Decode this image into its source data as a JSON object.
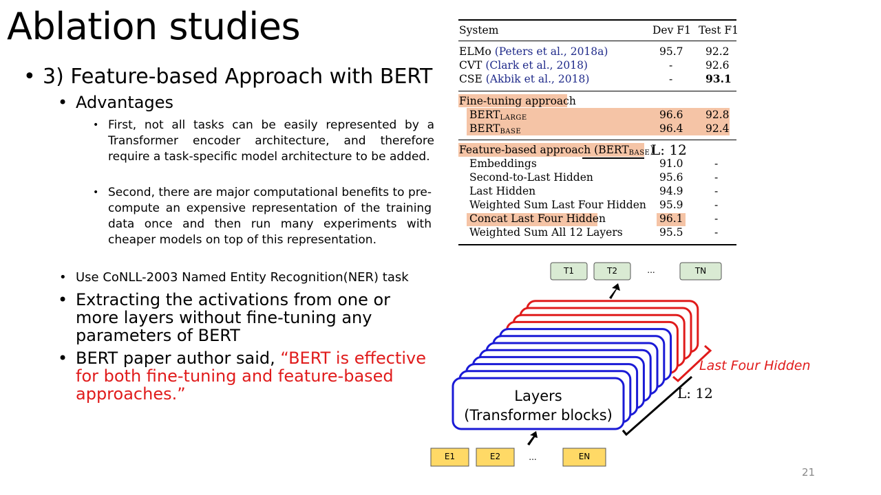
{
  "slide": {
    "title": "Ablation studies",
    "page_number": "21",
    "bullets": {
      "main": "3) Feature-based Approach with BERT",
      "advantages": "Advantages",
      "adv1": "First, not all tasks can be easily represented by a Transformer encoder architecture, and therefore require a task-specific model architecture to be added.",
      "adv2": "Second, there are major computational benefits to pre-compute an expensive representation of the training data once and then run many experiments with cheaper models on top of this representation.",
      "conll": "Use CoNLL-2003 Named Entity Recognition(NER) task",
      "extract": "Extracting the activations from one or more layers without fine-tuning any parameters of BERT",
      "author_prefix": "BERT paper author said, ",
      "author_quote": "“BERT is effective for both fine-tuning and feature-based approaches.”"
    }
  },
  "table": {
    "headers": [
      "System",
      "Dev F1",
      "Test F1"
    ],
    "rows_top": [
      {
        "name": "ELMo",
        "cite": "(Peters et al., 2018a)",
        "dev": "95.7",
        "test": "92.2"
      },
      {
        "name": "CVT",
        "cite": "(Clark et al., 2018)",
        "dev": "-",
        "test": "92.6"
      },
      {
        "name": "CSE",
        "cite": "(Akbik et al., 2018)",
        "dev": "-",
        "test": "93.1"
      }
    ],
    "finetune_label": "Fine-tuning approach",
    "bert_large": {
      "base": "BERT",
      "sub": "LARGE",
      "dev": "96.6",
      "test": "92.8"
    },
    "bert_base": {
      "base": "BERT",
      "sub": "BASE",
      "dev": "96.4",
      "test": "92.4"
    },
    "feature_label_prefix": "Feature-based approach (BERT",
    "feature_label_sub": "BASE",
    "feature_label_suffix": ")",
    "rows_feature": [
      {
        "name": "Embeddings",
        "dev": "91.0",
        "test": "-"
      },
      {
        "name": "Second-to-Last Hidden",
        "dev": "95.6",
        "test": "-"
      },
      {
        "name": "Last Hidden",
        "dev": "94.9",
        "test": "-"
      },
      {
        "name": "Weighted Sum Last Four Hidden",
        "dev": "95.9",
        "test": "-"
      },
      {
        "name": "Concat Last Four Hidden",
        "dev": "96.1",
        "test": "-"
      },
      {
        "name": "Weighted Sum All 12 Layers",
        "dev": "95.5",
        "test": "-"
      }
    ]
  },
  "diagram": {
    "outputs": [
      "T1",
      "T2",
      "...",
      "TN"
    ],
    "inputs": [
      "E1",
      "E2",
      "...",
      "EN"
    ],
    "layers_label_1": "Layers",
    "layers_label_2": "(Transformer blocks)",
    "last_four_label": "Last Four Hidden",
    "l12_label": "L: 12",
    "l12_table_label": "L: 12",
    "colors": {
      "red": "#e01b1b",
      "blue": "#1a1ad6",
      "token_green": "#d9ead3",
      "token_yellow": "#ffd966"
    }
  }
}
